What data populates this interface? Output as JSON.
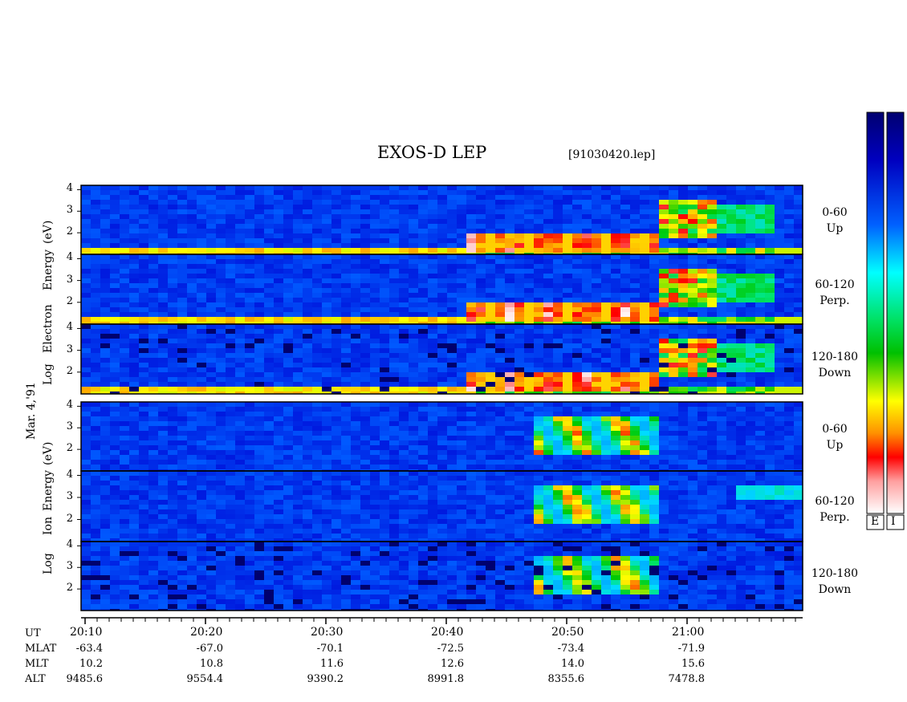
{
  "chart_data": {
    "type": "heatmap",
    "title": "EXOS-D LEP",
    "file": "[91030420.lep]",
    "date_label": "Mar. 4,'91",
    "groups": [
      {
        "name": "electron",
        "ylabel": [
          "Log",
          "Electron",
          "Energy",
          "(eV)"
        ],
        "panels": [
          {
            "channel": "0-60",
            "direction": "Up"
          },
          {
            "channel": "60-120",
            "direction": "Perp."
          },
          {
            "channel": "120-180",
            "direction": "Down"
          }
        ]
      },
      {
        "name": "ion",
        "ylabel": [
          "Log",
          "Ion",
          "Energy",
          "(eV)"
        ],
        "panels": [
          {
            "channel": "0-60",
            "direction": "Up"
          },
          {
            "channel": "60-120",
            "direction": "Perp."
          },
          {
            "channel": "120-180",
            "direction": "Down"
          }
        ]
      }
    ],
    "y_ticks": [
      "4",
      "3",
      "2"
    ],
    "ylim": [
      1,
      4.2
    ],
    "x_ticks": [
      "20:10",
      "20:20",
      "20:30",
      "20:40",
      "20:50",
      "21:00"
    ],
    "xlim": [
      "20:09:20",
      "21:09:00"
    ],
    "ephemeris": {
      "labels": [
        "UT",
        "MLAT",
        "MLT",
        "ALT"
      ],
      "columns": [
        {
          "MLAT": "-63.4",
          "MLT": "10.2",
          "ALT": "9485.6"
        },
        {
          "MLAT": "-67.0",
          "MLT": "10.8",
          "ALT": "9554.4"
        },
        {
          "MLAT": "-70.1",
          "MLT": "11.6",
          "ALT": "9390.2"
        },
        {
          "MLAT": "-72.5",
          "MLT": "12.6",
          "ALT": "8991.8"
        },
        {
          "MLAT": "-73.4",
          "MLT": "14.0",
          "ALT": "8355.6"
        },
        {
          "MLAT": "-71.9",
          "MLT": "15.6",
          "ALT": "7478.8"
        }
      ]
    },
    "colorbars": [
      {
        "label": "E"
      },
      {
        "label": "I"
      }
    ],
    "colormap": [
      "#ffffff",
      "#ffd0d0",
      "#ff0000",
      "#ff8000",
      "#ffff00",
      "#00d000",
      "#00ffff",
      "#0080ff",
      "#0000ff",
      "#000080"
    ]
  }
}
